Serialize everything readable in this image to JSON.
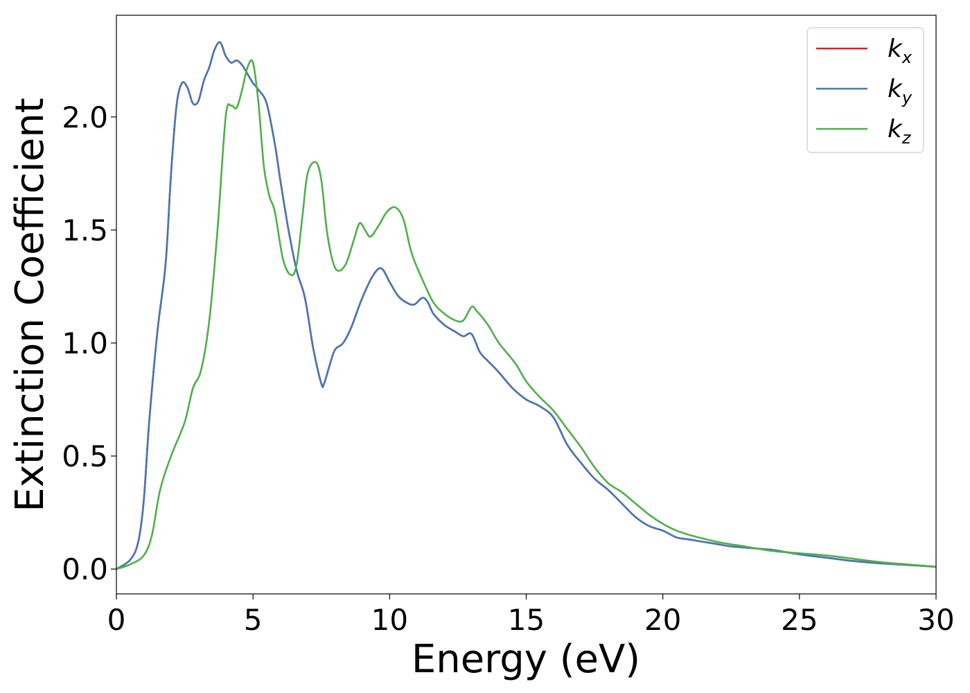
{
  "chart_data": {
    "type": "line",
    "xlabel": "Energy (eV)",
    "ylabel": "Extinction Coefficient",
    "xlim": [
      0,
      30
    ],
    "ylim": [
      -0.11,
      2.45
    ],
    "xticks": [
      0,
      5,
      10,
      15,
      20,
      25,
      30
    ],
    "xtick_labels": [
      "0",
      "5",
      "10",
      "15",
      "20",
      "25",
      "30"
    ],
    "yticks": [
      0.0,
      0.5,
      1.0,
      1.5,
      2.0
    ],
    "ytick_labels": [
      "0.0",
      "0.5",
      "1.0",
      "1.5",
      "2.0"
    ],
    "grid": false,
    "legend_position": "top-right",
    "series": [
      {
        "name": "k",
        "subscript": "x",
        "color": "#e41a1c",
        "x": [
          0,
          0.5,
          0.8,
          1.0,
          1.2,
          1.5,
          1.8,
          2.0,
          2.2,
          2.4,
          2.6,
          2.8,
          3.0,
          3.2,
          3.4,
          3.6,
          3.8,
          4.0,
          4.2,
          4.4,
          4.6,
          4.8,
          5.0,
          5.2,
          5.5,
          5.8,
          6.0,
          6.3,
          6.6,
          6.9,
          7.2,
          7.5,
          7.6,
          7.8,
          8.0,
          8.3,
          8.6,
          9.0,
          9.4,
          9.7,
          10.0,
          10.3,
          10.6,
          10.9,
          11.2,
          11.4,
          11.6,
          12.0,
          12.4,
          12.7,
          13.0,
          13.3,
          13.6,
          14.0,
          14.5,
          15.0,
          15.5,
          16.0,
          16.5,
          17.0,
          17.5,
          18.0,
          18.5,
          19.0,
          19.5,
          20.0,
          20.5,
          21.0,
          21.5,
          22.0,
          22.5,
          23.0,
          23.5,
          24.0,
          24.5,
          25.0,
          26.0,
          27.0,
          28.0,
          29.0,
          30.0
        ],
        "y": [
          0.0,
          0.04,
          0.12,
          0.3,
          0.65,
          1.05,
          1.35,
          1.75,
          2.05,
          2.15,
          2.13,
          2.06,
          2.07,
          2.16,
          2.22,
          2.3,
          2.33,
          2.27,
          2.24,
          2.25,
          2.23,
          2.19,
          2.15,
          2.12,
          2.06,
          1.88,
          1.72,
          1.5,
          1.32,
          1.2,
          0.98,
          0.82,
          0.82,
          0.9,
          0.97,
          1.0,
          1.07,
          1.2,
          1.3,
          1.33,
          1.27,
          1.21,
          1.18,
          1.17,
          1.2,
          1.18,
          1.13,
          1.08,
          1.05,
          1.03,
          1.04,
          0.96,
          0.92,
          0.87,
          0.8,
          0.75,
          0.72,
          0.67,
          0.55,
          0.47,
          0.4,
          0.35,
          0.29,
          0.23,
          0.19,
          0.17,
          0.14,
          0.13,
          0.12,
          0.11,
          0.1,
          0.095,
          0.09,
          0.085,
          0.075,
          0.065,
          0.05,
          0.035,
          0.025,
          0.018,
          0.01
        ]
      },
      {
        "name": "k",
        "subscript": "y",
        "color": "#4678b2",
        "x": [
          0,
          0.5,
          0.8,
          1.0,
          1.2,
          1.5,
          1.8,
          2.0,
          2.2,
          2.4,
          2.6,
          2.8,
          3.0,
          3.2,
          3.4,
          3.6,
          3.8,
          4.0,
          4.2,
          4.4,
          4.6,
          4.8,
          5.0,
          5.2,
          5.5,
          5.8,
          6.0,
          6.3,
          6.6,
          6.9,
          7.2,
          7.5,
          7.6,
          7.8,
          8.0,
          8.3,
          8.6,
          9.0,
          9.4,
          9.7,
          10.0,
          10.3,
          10.6,
          10.9,
          11.2,
          11.4,
          11.6,
          12.0,
          12.4,
          12.7,
          13.0,
          13.3,
          13.6,
          14.0,
          14.5,
          15.0,
          15.5,
          16.0,
          16.5,
          17.0,
          17.5,
          18.0,
          18.5,
          19.0,
          19.5,
          20.0,
          20.5,
          21.0,
          21.5,
          22.0,
          22.5,
          23.0,
          23.5,
          24.0,
          24.5,
          25.0,
          26.0,
          27.0,
          28.0,
          29.0,
          30.0
        ],
        "y": [
          0.0,
          0.04,
          0.12,
          0.3,
          0.65,
          1.05,
          1.35,
          1.75,
          2.05,
          2.15,
          2.13,
          2.06,
          2.07,
          2.16,
          2.22,
          2.3,
          2.33,
          2.27,
          2.24,
          2.25,
          2.23,
          2.19,
          2.15,
          2.12,
          2.06,
          1.88,
          1.72,
          1.5,
          1.32,
          1.2,
          0.98,
          0.82,
          0.82,
          0.9,
          0.97,
          1.0,
          1.07,
          1.2,
          1.3,
          1.33,
          1.27,
          1.21,
          1.18,
          1.17,
          1.2,
          1.18,
          1.13,
          1.08,
          1.05,
          1.03,
          1.04,
          0.96,
          0.92,
          0.87,
          0.8,
          0.75,
          0.72,
          0.67,
          0.55,
          0.47,
          0.4,
          0.35,
          0.29,
          0.23,
          0.19,
          0.17,
          0.14,
          0.13,
          0.12,
          0.11,
          0.1,
          0.095,
          0.09,
          0.085,
          0.075,
          0.065,
          0.05,
          0.035,
          0.025,
          0.018,
          0.01
        ]
      },
      {
        "name": "k",
        "subscript": "z",
        "color": "#4daf4a",
        "x": [
          0,
          0.5,
          1.0,
          1.3,
          1.6,
          2.0,
          2.5,
          2.8,
          3.1,
          3.4,
          3.7,
          4.0,
          4.2,
          4.4,
          4.6,
          4.8,
          5.0,
          5.2,
          5.4,
          5.6,
          5.8,
          6.1,
          6.4,
          6.6,
          6.8,
          7.0,
          7.3,
          7.5,
          7.7,
          7.9,
          8.1,
          8.4,
          8.7,
          8.9,
          9.1,
          9.3,
          9.6,
          9.9,
          10.2,
          10.5,
          10.8,
          11.2,
          11.6,
          12.0,
          12.4,
          12.7,
          13.0,
          13.2,
          13.6,
          14.0,
          14.6,
          15.0,
          15.5,
          16.0,
          16.5,
          17.0,
          17.5,
          18.0,
          18.5,
          19.0,
          19.5,
          20.0,
          20.5,
          21.0,
          22.0,
          23.0,
          24.0,
          25.0,
          26.0,
          27.0,
          28.0,
          29.0,
          30.0
        ],
        "y": [
          0.0,
          0.02,
          0.06,
          0.15,
          0.35,
          0.5,
          0.65,
          0.8,
          0.88,
          1.1,
          1.5,
          2.0,
          2.05,
          2.04,
          2.12,
          2.22,
          2.24,
          2.06,
          1.78,
          1.65,
          1.58,
          1.37,
          1.3,
          1.35,
          1.55,
          1.75,
          1.8,
          1.72,
          1.5,
          1.37,
          1.32,
          1.35,
          1.46,
          1.53,
          1.5,
          1.47,
          1.52,
          1.58,
          1.6,
          1.55,
          1.4,
          1.28,
          1.18,
          1.13,
          1.1,
          1.1,
          1.16,
          1.14,
          1.08,
          1.0,
          0.91,
          0.83,
          0.76,
          0.7,
          0.62,
          0.54,
          0.45,
          0.38,
          0.34,
          0.29,
          0.24,
          0.2,
          0.17,
          0.15,
          0.12,
          0.1,
          0.08,
          0.07,
          0.06,
          0.045,
          0.03,
          0.02,
          0.01
        ]
      }
    ]
  }
}
